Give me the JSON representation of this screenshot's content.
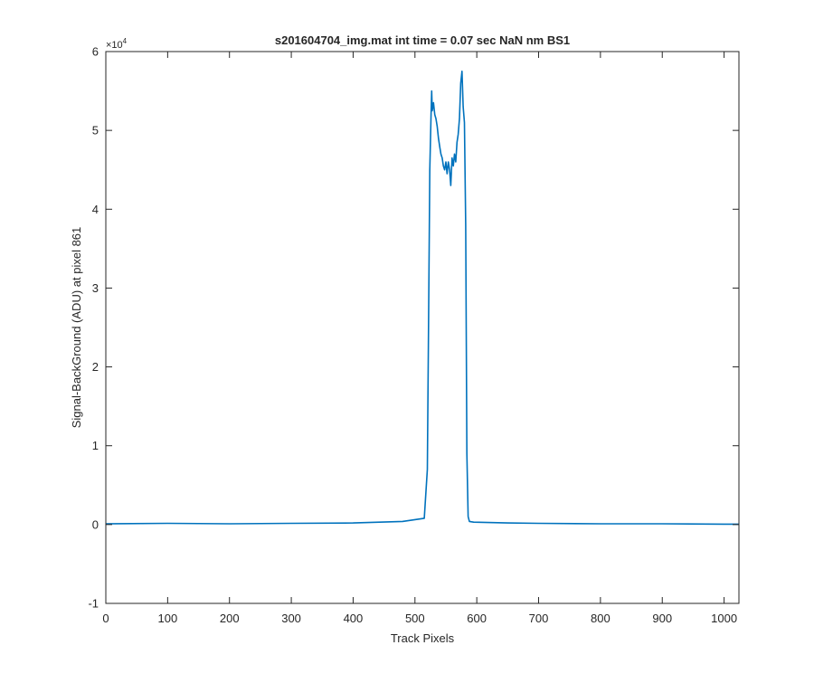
{
  "chart_data": {
    "type": "line",
    "title": "s201604704_img.mat int time = 0.07 sec  NaN nm BS1",
    "xlabel": "Track Pixels",
    "ylabel": "Signal-BackGround (ADU) at pixel 861",
    "y_exponent_label": "×10",
    "y_exponent_power": "4",
    "xlim": [
      0,
      1024
    ],
    "ylim": [
      -10000,
      60000
    ],
    "x_ticks": [
      0,
      100,
      200,
      300,
      400,
      500,
      600,
      700,
      800,
      900,
      1000
    ],
    "y_ticks": [
      -10000,
      0,
      10000,
      20000,
      30000,
      40000,
      50000,
      60000
    ],
    "x_tick_labels": [
      "0",
      "100",
      "200",
      "300",
      "400",
      "500",
      "600",
      "700",
      "800",
      "900",
      "1000"
    ],
    "y_tick_labels": [
      "-1",
      "0",
      "1",
      "2",
      "3",
      "4",
      "5",
      "6"
    ],
    "grid": false,
    "series": [
      {
        "color": "#0072BD",
        "x": [
          0,
          100,
          200,
          300,
          400,
          480,
          515,
          520,
          522,
          524,
          526,
          527,
          528,
          530,
          532,
          534,
          536,
          538,
          540,
          542,
          544,
          546,
          548,
          550,
          552,
          554,
          556,
          558,
          560,
          562,
          564,
          566,
          568,
          570,
          572,
          574,
          576,
          578,
          580,
          582,
          584,
          586,
          588,
          595,
          650,
          700,
          800,
          900,
          1000,
          1024
        ],
        "y": [
          100,
          150,
          100,
          150,
          200,
          400,
          800,
          7000,
          25000,
          45000,
          52000,
          55000,
          52500,
          53500,
          52000,
          51500,
          50500,
          49000,
          48000,
          47000,
          46500,
          45500,
          45000,
          46000,
          44500,
          46000,
          45000,
          43000,
          46500,
          45500,
          47000,
          46000,
          48500,
          49500,
          51500,
          56000,
          57500,
          53000,
          51000,
          38000,
          9000,
          1000,
          400,
          300,
          200,
          150,
          100,
          100,
          50,
          50
        ]
      }
    ]
  }
}
